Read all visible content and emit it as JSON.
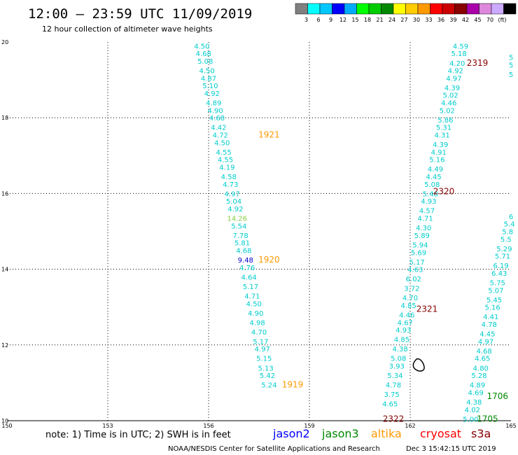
{
  "header": {
    "title": "12:00 – 23:59 UTC 11/09/2019",
    "subtitle": "12 hour collection of altimeter wave heights"
  },
  "legend": {
    "colors": [
      "#808080",
      "#00ffff",
      "#00c8ff",
      "#0000ff",
      "#00aaff",
      "#00ff00",
      "#00cc00",
      "#008800",
      "#ffff00",
      "#ffcc00",
      "#ff9900",
      "#ff0000",
      "#cc0000",
      "#880000",
      "#aa00aa",
      "#dd88dd",
      "#ccaaff",
      "#000000"
    ],
    "labels": [
      "3",
      "6",
      "9",
      "12",
      "15",
      "18",
      "21",
      "24",
      "27",
      "30",
      "33",
      "36",
      "39",
      "42",
      "45",
      "70",
      "(ft)"
    ]
  },
  "axes": {
    "x_ticks": [
      "150",
      "153",
      "156",
      "159",
      "162",
      "165"
    ],
    "y_ticks": [
      "20",
      "18",
      "16",
      "14",
      "12",
      "10"
    ]
  },
  "chart_data": {
    "type": "scatter",
    "xlim": [
      150,
      165
    ],
    "ylim": [
      10,
      20
    ],
    "grid": true,
    "tracks": [
      {
        "name": "track-a",
        "color": "#00cccc",
        "points": [
          {
            "x": 155.8,
            "y": 19.9,
            "v": "4.50"
          },
          {
            "x": 155.85,
            "y": 19.7,
            "v": "4.68"
          },
          {
            "x": 155.9,
            "y": 19.5,
            "v": "5.08"
          },
          {
            "x": 155.95,
            "y": 19.25,
            "v": "4.50"
          },
          {
            "x": 156.0,
            "y": 19.05,
            "v": "4.87"
          },
          {
            "x": 156.05,
            "y": 18.85,
            "v": "5.10"
          },
          {
            "x": 156.1,
            "y": 18.65,
            "v": "4.92"
          },
          {
            "x": 156.15,
            "y": 18.4,
            "v": "4.89"
          },
          {
            "x": 156.2,
            "y": 18.2,
            "v": "4.90"
          },
          {
            "x": 156.25,
            "y": 18.0,
            "v": "4.68"
          },
          {
            "x": 156.3,
            "y": 17.75,
            "v": "4.42"
          },
          {
            "x": 156.35,
            "y": 17.55,
            "v": "4.72"
          },
          {
            "x": 156.4,
            "y": 17.35,
            "v": "4.50"
          },
          {
            "x": 156.45,
            "y": 17.1,
            "v": "4.55"
          },
          {
            "x": 156.5,
            "y": 16.9,
            "v": "4.55"
          },
          {
            "x": 156.55,
            "y": 16.7,
            "v": "4.19"
          },
          {
            "x": 156.6,
            "y": 16.45,
            "v": "4.58"
          },
          {
            "x": 156.65,
            "y": 16.25,
            "v": "4.73"
          },
          {
            "x": 156.7,
            "y": 16.0,
            "v": "4.97"
          },
          {
            "x": 156.75,
            "y": 15.8,
            "v": "5.04"
          },
          {
            "x": 156.8,
            "y": 15.6,
            "v": "4.92"
          },
          {
            "x": 156.85,
            "y": 15.35,
            "v": "14.26",
            "color": "#88cc44"
          },
          {
            "x": 156.9,
            "y": 15.15,
            "v": "5.54"
          },
          {
            "x": 156.95,
            "y": 14.9,
            "v": "7.78"
          },
          {
            "x": 157.0,
            "y": 14.7,
            "v": "5.81"
          },
          {
            "x": 157.05,
            "y": 14.5,
            "v": "4.68"
          },
          {
            "x": 157.1,
            "y": 14.25,
            "v": "9.48",
            "color": "#0000cc"
          },
          {
            "x": 157.15,
            "y": 14.05,
            "v": "4.76"
          },
          {
            "x": 157.2,
            "y": 13.8,
            "v": "4.64"
          },
          {
            "x": 157.25,
            "y": 13.55,
            "v": "5.17"
          },
          {
            "x": 157.3,
            "y": 13.3,
            "v": "4.71"
          },
          {
            "x": 157.35,
            "y": 13.1,
            "v": "4.50"
          },
          {
            "x": 157.4,
            "y": 12.85,
            "v": "4.90"
          },
          {
            "x": 157.45,
            "y": 12.6,
            "v": "4.98"
          },
          {
            "x": 157.5,
            "y": 12.35,
            "v": "4.70"
          },
          {
            "x": 157.55,
            "y": 12.1,
            "v": "5.17"
          },
          {
            "x": 157.6,
            "y": 11.9,
            "v": "4.97"
          },
          {
            "x": 157.65,
            "y": 11.65,
            "v": "5.15"
          },
          {
            "x": 157.7,
            "y": 11.4,
            "v": "5.13"
          },
          {
            "x": 157.75,
            "y": 11.2,
            "v": "5.42"
          },
          {
            "x": 157.8,
            "y": 10.95,
            "v": "5.24"
          }
        ]
      },
      {
        "name": "track-b",
        "color": "#00cccc",
        "points": [
          {
            "x": 163.5,
            "y": 19.9,
            "v": "4.59"
          },
          {
            "x": 163.45,
            "y": 19.7,
            "v": "5.18"
          },
          {
            "x": 163.4,
            "y": 19.45,
            "v": "4.20"
          },
          {
            "x": 163.35,
            "y": 19.25,
            "v": "4.92"
          },
          {
            "x": 163.3,
            "y": 19.05,
            "v": "4.97"
          },
          {
            "x": 163.25,
            "y": 18.8,
            "v": "4.39"
          },
          {
            "x": 163.2,
            "y": 18.6,
            "v": "5.02"
          },
          {
            "x": 163.15,
            "y": 18.4,
            "v": "4.46"
          },
          {
            "x": 163.1,
            "y": 18.2,
            "v": "5.02"
          },
          {
            "x": 163.05,
            "y": 17.95,
            "v": "5.86"
          },
          {
            "x": 163.0,
            "y": 17.75,
            "v": "5.31"
          },
          {
            "x": 162.95,
            "y": 17.55,
            "v": "4.31"
          },
          {
            "x": 162.9,
            "y": 17.3,
            "v": "4.39"
          },
          {
            "x": 162.85,
            "y": 17.1,
            "v": "4.91"
          },
          {
            "x": 162.8,
            "y": 16.9,
            "v": "5.16"
          },
          {
            "x": 162.75,
            "y": 16.65,
            "v": "4.49"
          },
          {
            "x": 162.7,
            "y": 16.45,
            "v": "4.45"
          },
          {
            "x": 162.65,
            "y": 16.25,
            "v": "5.08"
          },
          {
            "x": 162.6,
            "y": 16.0,
            "v": "5.48"
          },
          {
            "x": 162.55,
            "y": 15.8,
            "v": "4.93"
          },
          {
            "x": 162.5,
            "y": 15.55,
            "v": "4.57"
          },
          {
            "x": 162.45,
            "y": 15.35,
            "v": "4.71"
          },
          {
            "x": 162.4,
            "y": 15.1,
            "v": "4.30"
          },
          {
            "x": 162.35,
            "y": 14.9,
            "v": "5.89"
          },
          {
            "x": 162.3,
            "y": 14.65,
            "v": "5.94"
          },
          {
            "x": 162.25,
            "y": 14.45,
            "v": "5.69"
          },
          {
            "x": 162.2,
            "y": 14.2,
            "v": "5.17"
          },
          {
            "x": 162.15,
            "y": 14.0,
            "v": "4.63"
          },
          {
            "x": 162.1,
            "y": 13.75,
            "v": "6.02"
          },
          {
            "x": 162.05,
            "y": 13.5,
            "v": "3.72"
          },
          {
            "x": 162.0,
            "y": 13.25,
            "v": "4.70"
          },
          {
            "x": 161.95,
            "y": 13.05,
            "v": "4.85"
          },
          {
            "x": 161.9,
            "y": 12.8,
            "v": "4.46"
          },
          {
            "x": 161.85,
            "y": 12.6,
            "v": "4.67"
          },
          {
            "x": 161.8,
            "y": 12.4,
            "v": "4.93"
          },
          {
            "x": 161.75,
            "y": 12.15,
            "v": "4.85"
          },
          {
            "x": 161.7,
            "y": 11.9,
            "v": "4.38"
          },
          {
            "x": 161.65,
            "y": 11.65,
            "v": "5.08"
          },
          {
            "x": 161.6,
            "y": 11.45,
            "v": "3.93"
          },
          {
            "x": 161.55,
            "y": 11.2,
            "v": "5.34"
          },
          {
            "x": 161.5,
            "y": 10.95,
            "v": "4.78"
          },
          {
            "x": 161.45,
            "y": 10.7,
            "v": "3.75"
          },
          {
            "x": 161.4,
            "y": 10.45,
            "v": "4.65"
          }
        ]
      },
      {
        "name": "track-c",
        "color": "#00cccc",
        "points": [
          {
            "x": 165.0,
            "y": 15.4,
            "v": "6"
          },
          {
            "x": 164.95,
            "y": 15.2,
            "v": "5.4"
          },
          {
            "x": 164.9,
            "y": 15.0,
            "v": "5.8"
          },
          {
            "x": 164.85,
            "y": 14.8,
            "v": "5.5"
          },
          {
            "x": 164.8,
            "y": 14.55,
            "v": "5.29"
          },
          {
            "x": 164.75,
            "y": 14.35,
            "v": "5.71"
          },
          {
            "x": 164.7,
            "y": 14.1,
            "v": "6.19"
          },
          {
            "x": 164.65,
            "y": 13.9,
            "v": "6.43"
          },
          {
            "x": 164.6,
            "y": 13.65,
            "v": "5.75"
          },
          {
            "x": 164.55,
            "y": 13.45,
            "v": "5.07"
          },
          {
            "x": 164.5,
            "y": 13.2,
            "v": "5.45"
          },
          {
            "x": 164.45,
            "y": 13.0,
            "v": "5.16"
          },
          {
            "x": 164.4,
            "y": 12.75,
            "v": "4.41"
          },
          {
            "x": 164.35,
            "y": 12.55,
            "v": "4.78"
          },
          {
            "x": 164.3,
            "y": 12.3,
            "v": "4.45"
          },
          {
            "x": 164.25,
            "y": 12.1,
            "v": "4.97"
          },
          {
            "x": 164.2,
            "y": 11.85,
            "v": "4.68"
          },
          {
            "x": 164.15,
            "y": 11.65,
            "v": "4.65"
          },
          {
            "x": 164.1,
            "y": 11.4,
            "v": "4.80"
          },
          {
            "x": 164.05,
            "y": 11.2,
            "v": "5.28"
          },
          {
            "x": 164.0,
            "y": 10.95,
            "v": "4.89"
          },
          {
            "x": 163.95,
            "y": 10.75,
            "v": "4.69"
          },
          {
            "x": 163.9,
            "y": 10.5,
            "v": "4.38"
          },
          {
            "x": 163.85,
            "y": 10.3,
            "v": "4.02"
          },
          {
            "x": 163.8,
            "y": 10.05,
            "v": "5.00"
          }
        ]
      },
      {
        "name": "track-d",
        "color": "#00cccc",
        "points": [
          {
            "x": 165.0,
            "y": 19.6,
            "v": "5"
          },
          {
            "x": 165.0,
            "y": 19.4,
            "v": "5"
          },
          {
            "x": 165.0,
            "y": 19.15,
            "v": "5"
          }
        ]
      }
    ],
    "pass_labels": [
      {
        "x": 157.8,
        "y": 17.55,
        "v": "1921",
        "color": "#ff9900"
      },
      {
        "x": 157.8,
        "y": 14.25,
        "v": "1920",
        "color": "#ff9900"
      },
      {
        "x": 158.5,
        "y": 10.95,
        "v": "1919",
        "color": "#ff9900"
      },
      {
        "x": 164.0,
        "y": 19.45,
        "v": "2319",
        "color": "#880000"
      },
      {
        "x": 163.0,
        "y": 16.05,
        "v": "2320",
        "color": "#880000"
      },
      {
        "x": 162.5,
        "y": 12.95,
        "v": "2321",
        "color": "#880000"
      },
      {
        "x": 161.5,
        "y": 10.05,
        "v": "2322",
        "color": "#880000"
      },
      {
        "x": 164.6,
        "y": 10.65,
        "v": "1706",
        "color": "#008800"
      },
      {
        "x": 164.3,
        "y": 10.05,
        "v": "1705",
        "color": "#008800"
      }
    ]
  },
  "footer": {
    "note": "note: 1) Time is in UTC; 2) SWH is in feet",
    "satellites": [
      {
        "label": "jason2",
        "color": "#0000ff"
      },
      {
        "label": "jason3",
        "color": "#008800"
      },
      {
        "label": "altika",
        "color": "#ff9900"
      },
      {
        "label": "cryosat",
        "color": "#ff0000"
      },
      {
        "label": "s3a",
        "color": "#880000"
      }
    ],
    "credit": "NOAA/NESDIS Center for Satellite Applications and Research",
    "timestamp": "Dec  3 15:42:15 UTC 2019"
  }
}
